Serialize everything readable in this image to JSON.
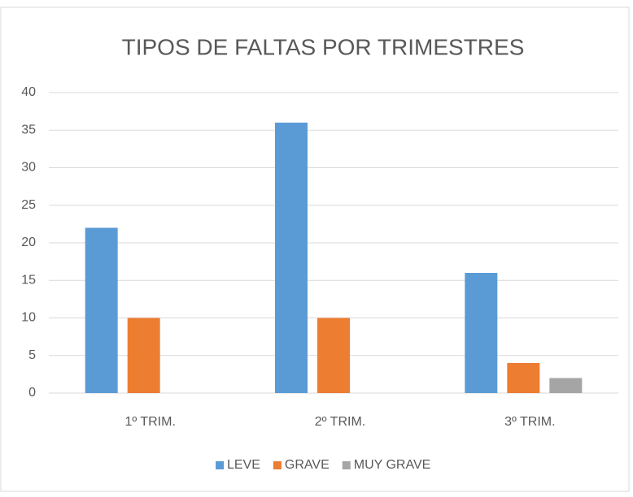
{
  "chart_data": {
    "type": "bar",
    "title": "TIPOS DE FALTAS POR TRIMESTRES",
    "categories": [
      "1º TRIM.",
      "2º TRIM.",
      "3º TRIM."
    ],
    "series": [
      {
        "name": "LEVE",
        "color": "#5b9bd5",
        "values": [
          22,
          36,
          16
        ]
      },
      {
        "name": "GRAVE",
        "color": "#ed7d31",
        "values": [
          10,
          10,
          4
        ]
      },
      {
        "name": "MUY GRAVE",
        "color": "#a5a5a5",
        "values": [
          0,
          0,
          2
        ]
      }
    ],
    "ylim": [
      0,
      40
    ],
    "yticks": [
      0,
      5,
      10,
      15,
      20,
      25,
      30,
      35,
      40
    ],
    "grid": true,
    "legend": "bottom"
  }
}
